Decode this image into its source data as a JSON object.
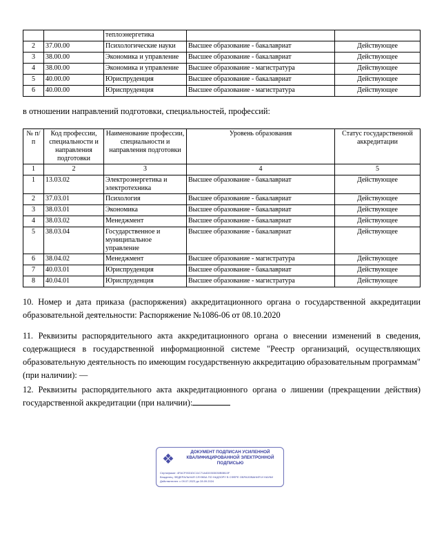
{
  "table1": {
    "rows": [
      [
        "",
        "",
        "теплоэнергетика",
        "",
        ""
      ],
      [
        "2",
        "37.00.00",
        "Психологические науки",
        "Высшее образование - бакалавриат",
        "Действующее"
      ],
      [
        "3",
        "38.00.00",
        "Экономика и управление",
        "Высшее образование - бакалавриат",
        "Действующее"
      ],
      [
        "4",
        "38.00.00",
        "Экономика и управление",
        "Высшее образование - магистратура",
        "Действующее"
      ],
      [
        "5",
        "40.00.00",
        "Юриспруденция",
        "Высшее образование - бакалавриат",
        "Действующее"
      ],
      [
        "6",
        "40.00.00",
        "Юриспруденция",
        "Высшее образование - магистратура",
        "Действующее"
      ]
    ]
  },
  "intro": "в отношении направлений подготовки, специальностей, профессий:",
  "table2": {
    "headers": [
      "№ п/п",
      "Код профессии, специальности и направления подготовки",
      "Наименование профессии, специальности и направления подготовки",
      "Уровень образования",
      "Статус государственной аккредитации"
    ],
    "numbers": [
      "1",
      "2",
      "3",
      "4",
      "5"
    ],
    "rows": [
      [
        "1",
        "13.03.02",
        "Электроэнергетика и электротехника",
        "Высшее образование - бакалавриат",
        "Действующее"
      ],
      [
        "2",
        "37.03.01",
        "Психология",
        "Высшее образование - бакалавриат",
        "Действующее"
      ],
      [
        "3",
        "38.03.01",
        "Экономика",
        "Высшее образование - бакалавриат",
        "Действующее"
      ],
      [
        "4",
        "38.03.02",
        "Менеджмент",
        "Высшее образование - бакалавриат",
        "Действующее"
      ],
      [
        "5",
        "38.03.04",
        "Государственное и муниципальное управление",
        "Высшее образование - бакалавриат",
        "Действующее"
      ],
      [
        "6",
        "38.04.02",
        "Менеджмент",
        "Высшее образование - магистратура",
        "Действующее"
      ],
      [
        "7",
        "40.03.01",
        "Юриспруденция",
        "Высшее образование - бакалавриат",
        "Действующее"
      ],
      [
        "8",
        "40.04.01",
        "Юриспруденция",
        "Высшее образование - магистратура",
        "Действующее"
      ]
    ]
  },
  "item10": "10. Номер и дата приказа (распоряжения) аккредитационного органа о государственной аккредитации образовательной деятельности: Распоряжение №1086-06 от 08.10.2020",
  "item11": "11. Реквизиты распорядительного акта аккредитационного органа о внесении изменений в сведения, содержащиеся в государственной информационной системе \"Реестр организаций, осуществляющих образовательную деятельность по имеющим государственную аккредитацию образовательным программам\" (при наличии): —",
  "item12": "12. Реквизиты распорядительного акта аккредитационного органа о лишении (прекращении действия) государственной аккредитации (при наличии):",
  "stamp": {
    "title": "ДОКУМЕНТ ПОДПИСАН УСИЛЕННОЙ КВАЛИФИЦИРОВАННОЙ ЭЛЕКТРОННОЙ ПОДПИСЬЮ",
    "certificate": "Сертификат: 4FACF9331DC11C71A4D0303030B5B10F",
    "owner": "Владелец: ФЕДЕРАЛЬНАЯ СЛУЖБА ПО НАДЗОРУ В СФЕРЕ ОБРАЗОВАНИЯ И НАУКИ",
    "valid": "Действителен: с 09.07.2023 до 28.09.2024",
    "icon": "coat-of-arms-emblem",
    "color": "#3a40a0"
  }
}
